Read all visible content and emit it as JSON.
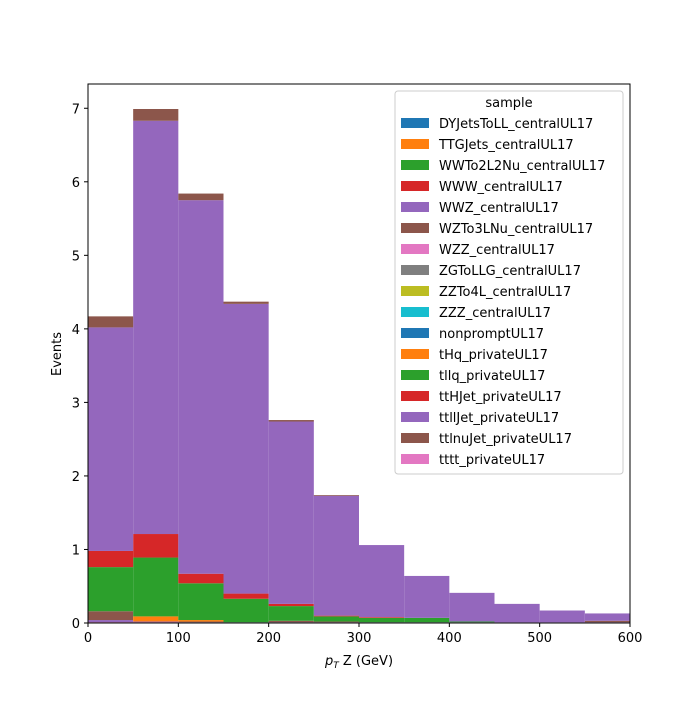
{
  "chart_data": {
    "type": "bar",
    "stacked": true,
    "histogram": true,
    "bin_edges": [
      0,
      50,
      100,
      150,
      200,
      250,
      300,
      350,
      400,
      450,
      500,
      550,
      600
    ],
    "xlabel_main": "p",
    "xlabel_sub": "T",
    "xlabel_rest": " Z (GeV)",
    "ylabel": "Events",
    "xlim": [
      0,
      600
    ],
    "ylim": [
      0,
      7.33
    ],
    "xticks": [
      0,
      100,
      200,
      300,
      400,
      500,
      600
    ],
    "yticks": [
      0,
      1,
      2,
      3,
      4,
      5,
      6,
      7
    ],
    "grid": false,
    "legend_title": "sample",
    "legend_position": "top-right",
    "series": [
      {
        "name": "DYJetsToLL_centralUL17",
        "color": "#1f77b4",
        "values": [
          0,
          0,
          0,
          0,
          0,
          0,
          0,
          0,
          0,
          0,
          0,
          0
        ]
      },
      {
        "name": "TTGJets_centralUL17",
        "color": "#ff7f0e",
        "values": [
          0,
          0,
          0,
          0,
          0,
          0,
          0,
          0,
          0,
          0,
          0,
          0
        ]
      },
      {
        "name": "WWTo2L2Nu_centralUL17",
        "color": "#2ca02c",
        "values": [
          0,
          0,
          0,
          0,
          0,
          0,
          0,
          0,
          0,
          0,
          0,
          0
        ]
      },
      {
        "name": "WWW_centralUL17",
        "color": "#d62728",
        "values": [
          0.01,
          0.01,
          0,
          0,
          0,
          0,
          0,
          0,
          0,
          0,
          0,
          0
        ]
      },
      {
        "name": "WWZ_centralUL17",
        "color": "#9467bd",
        "values": [
          0.03,
          0.01,
          0.01,
          0.01,
          0.01,
          0.01,
          0.01,
          0.01,
          0.01,
          0.01,
          0.01,
          0.01
        ]
      },
      {
        "name": "WZTo3LNu_centralUL17",
        "color": "#8c564b",
        "values": [
          0.12,
          0,
          0.01,
          0,
          0.02,
          0.01,
          0,
          0,
          0,
          0,
          0,
          0.02
        ]
      },
      {
        "name": "WZZ_centralUL17",
        "color": "#e377c2",
        "values": [
          0,
          0,
          0,
          0,
          0,
          0,
          0,
          0,
          0,
          0,
          0,
          0
        ]
      },
      {
        "name": "ZGToLLG_centralUL17",
        "color": "#7f7f7f",
        "values": [
          0,
          0,
          0,
          0,
          0,
          0,
          0,
          0,
          0,
          0,
          0,
          0
        ]
      },
      {
        "name": "ZZTo4L_centralUL17",
        "color": "#bcbd22",
        "values": [
          0,
          0,
          0,
          0,
          0,
          0,
          0,
          0,
          0,
          0,
          0,
          0
        ]
      },
      {
        "name": "ZZZ_centralUL17",
        "color": "#17becf",
        "values": [
          0,
          0,
          0,
          0,
          0,
          0,
          0,
          0,
          0,
          0,
          0,
          0
        ]
      },
      {
        "name": "nonpromptUL17",
        "color": "#1f77b4",
        "values": [
          0,
          0,
          0,
          0,
          0,
          0,
          0,
          0,
          0,
          0,
          0,
          0
        ]
      },
      {
        "name": "tHq_privateUL17",
        "color": "#ff7f0e",
        "values": [
          0,
          0.07,
          0.02,
          0,
          0,
          0,
          0,
          0,
          0,
          0,
          0,
          0
        ]
      },
      {
        "name": "tllq_privateUL17",
        "color": "#2ca02c",
        "values": [
          0.6,
          0.8,
          0.5,
          0.32,
          0.2,
          0.07,
          0.06,
          0.06,
          0.01,
          0,
          0,
          0
        ]
      },
      {
        "name": "ttHJet_privateUL17",
        "color": "#d62728",
        "values": [
          0.22,
          0.32,
          0.13,
          0.07,
          0.03,
          0.01,
          0.01,
          0,
          0,
          0,
          0,
          0
        ]
      },
      {
        "name": "ttllJet_privateUL17",
        "color": "#9467bd",
        "values": [
          3.04,
          5.62,
          5.08,
          3.94,
          2.48,
          1.63,
          0.98,
          0.57,
          0.39,
          0.25,
          0.16,
          0.1
        ]
      },
      {
        "name": "ttlnuJet_privateUL17",
        "color": "#8c564b",
        "values": [
          0.15,
          0.16,
          0.09,
          0.03,
          0.02,
          0.01,
          0,
          0,
          0,
          0,
          0,
          0
        ]
      },
      {
        "name": "tttt_privateUL17",
        "color": "#e377c2",
        "values": [
          0,
          0,
          0,
          0,
          0,
          0,
          0,
          0,
          0,
          0,
          0,
          0
        ]
      }
    ]
  }
}
